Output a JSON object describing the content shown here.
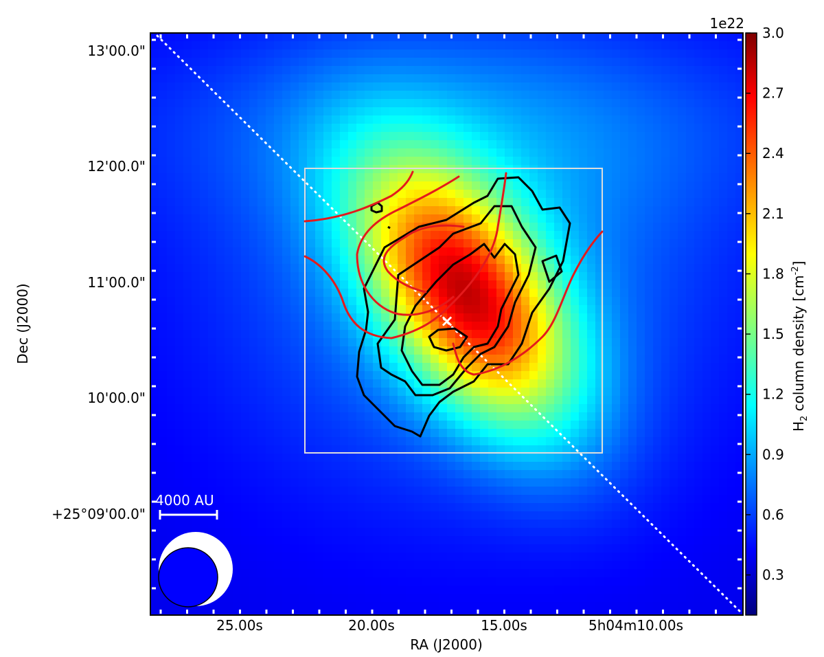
{
  "chart_data": {
    "type": "heatmap",
    "title": "",
    "xlabel": "RA (J2000)",
    "ylabel": "Dec (J2000)",
    "x_ticks": [
      "25.00s",
      "20.00s",
      "15.00s",
      "5h04m10.00s"
    ],
    "y_ticks": [
      "13'00.0\"",
      "12'00.0\"",
      "11'00.0\"",
      "10'00.0\"",
      "+25°09'00.0\""
    ],
    "colorbar": {
      "label_main": "H",
      "label_sub": "2",
      "label_rest": " column density [cm",
      "label_sup": "-2",
      "label_end": "]",
      "multiplier": "1e22",
      "ticks": [
        "0.3",
        "0.6",
        "0.9",
        "1.2",
        "1.5",
        "1.8",
        "2.1",
        "2.4",
        "2.7",
        "3.0"
      ],
      "range": [
        0.1,
        3.0
      ],
      "colormap": "jet"
    },
    "peak": {
      "ra_s": 16.8,
      "dec_arcsec": 52,
      "value": 2.9
    },
    "background_value": 0.4,
    "scale_bar_label": "4000 AU",
    "marker": "×",
    "grid": false,
    "legend": "none"
  },
  "colors": {
    "contour_black": "#000000",
    "contour_red": "#e41a1c",
    "box": "#dddddd",
    "marker": "#ffffff",
    "beam_outer": "#ffffff",
    "beam_inner": "#0000ff"
  }
}
